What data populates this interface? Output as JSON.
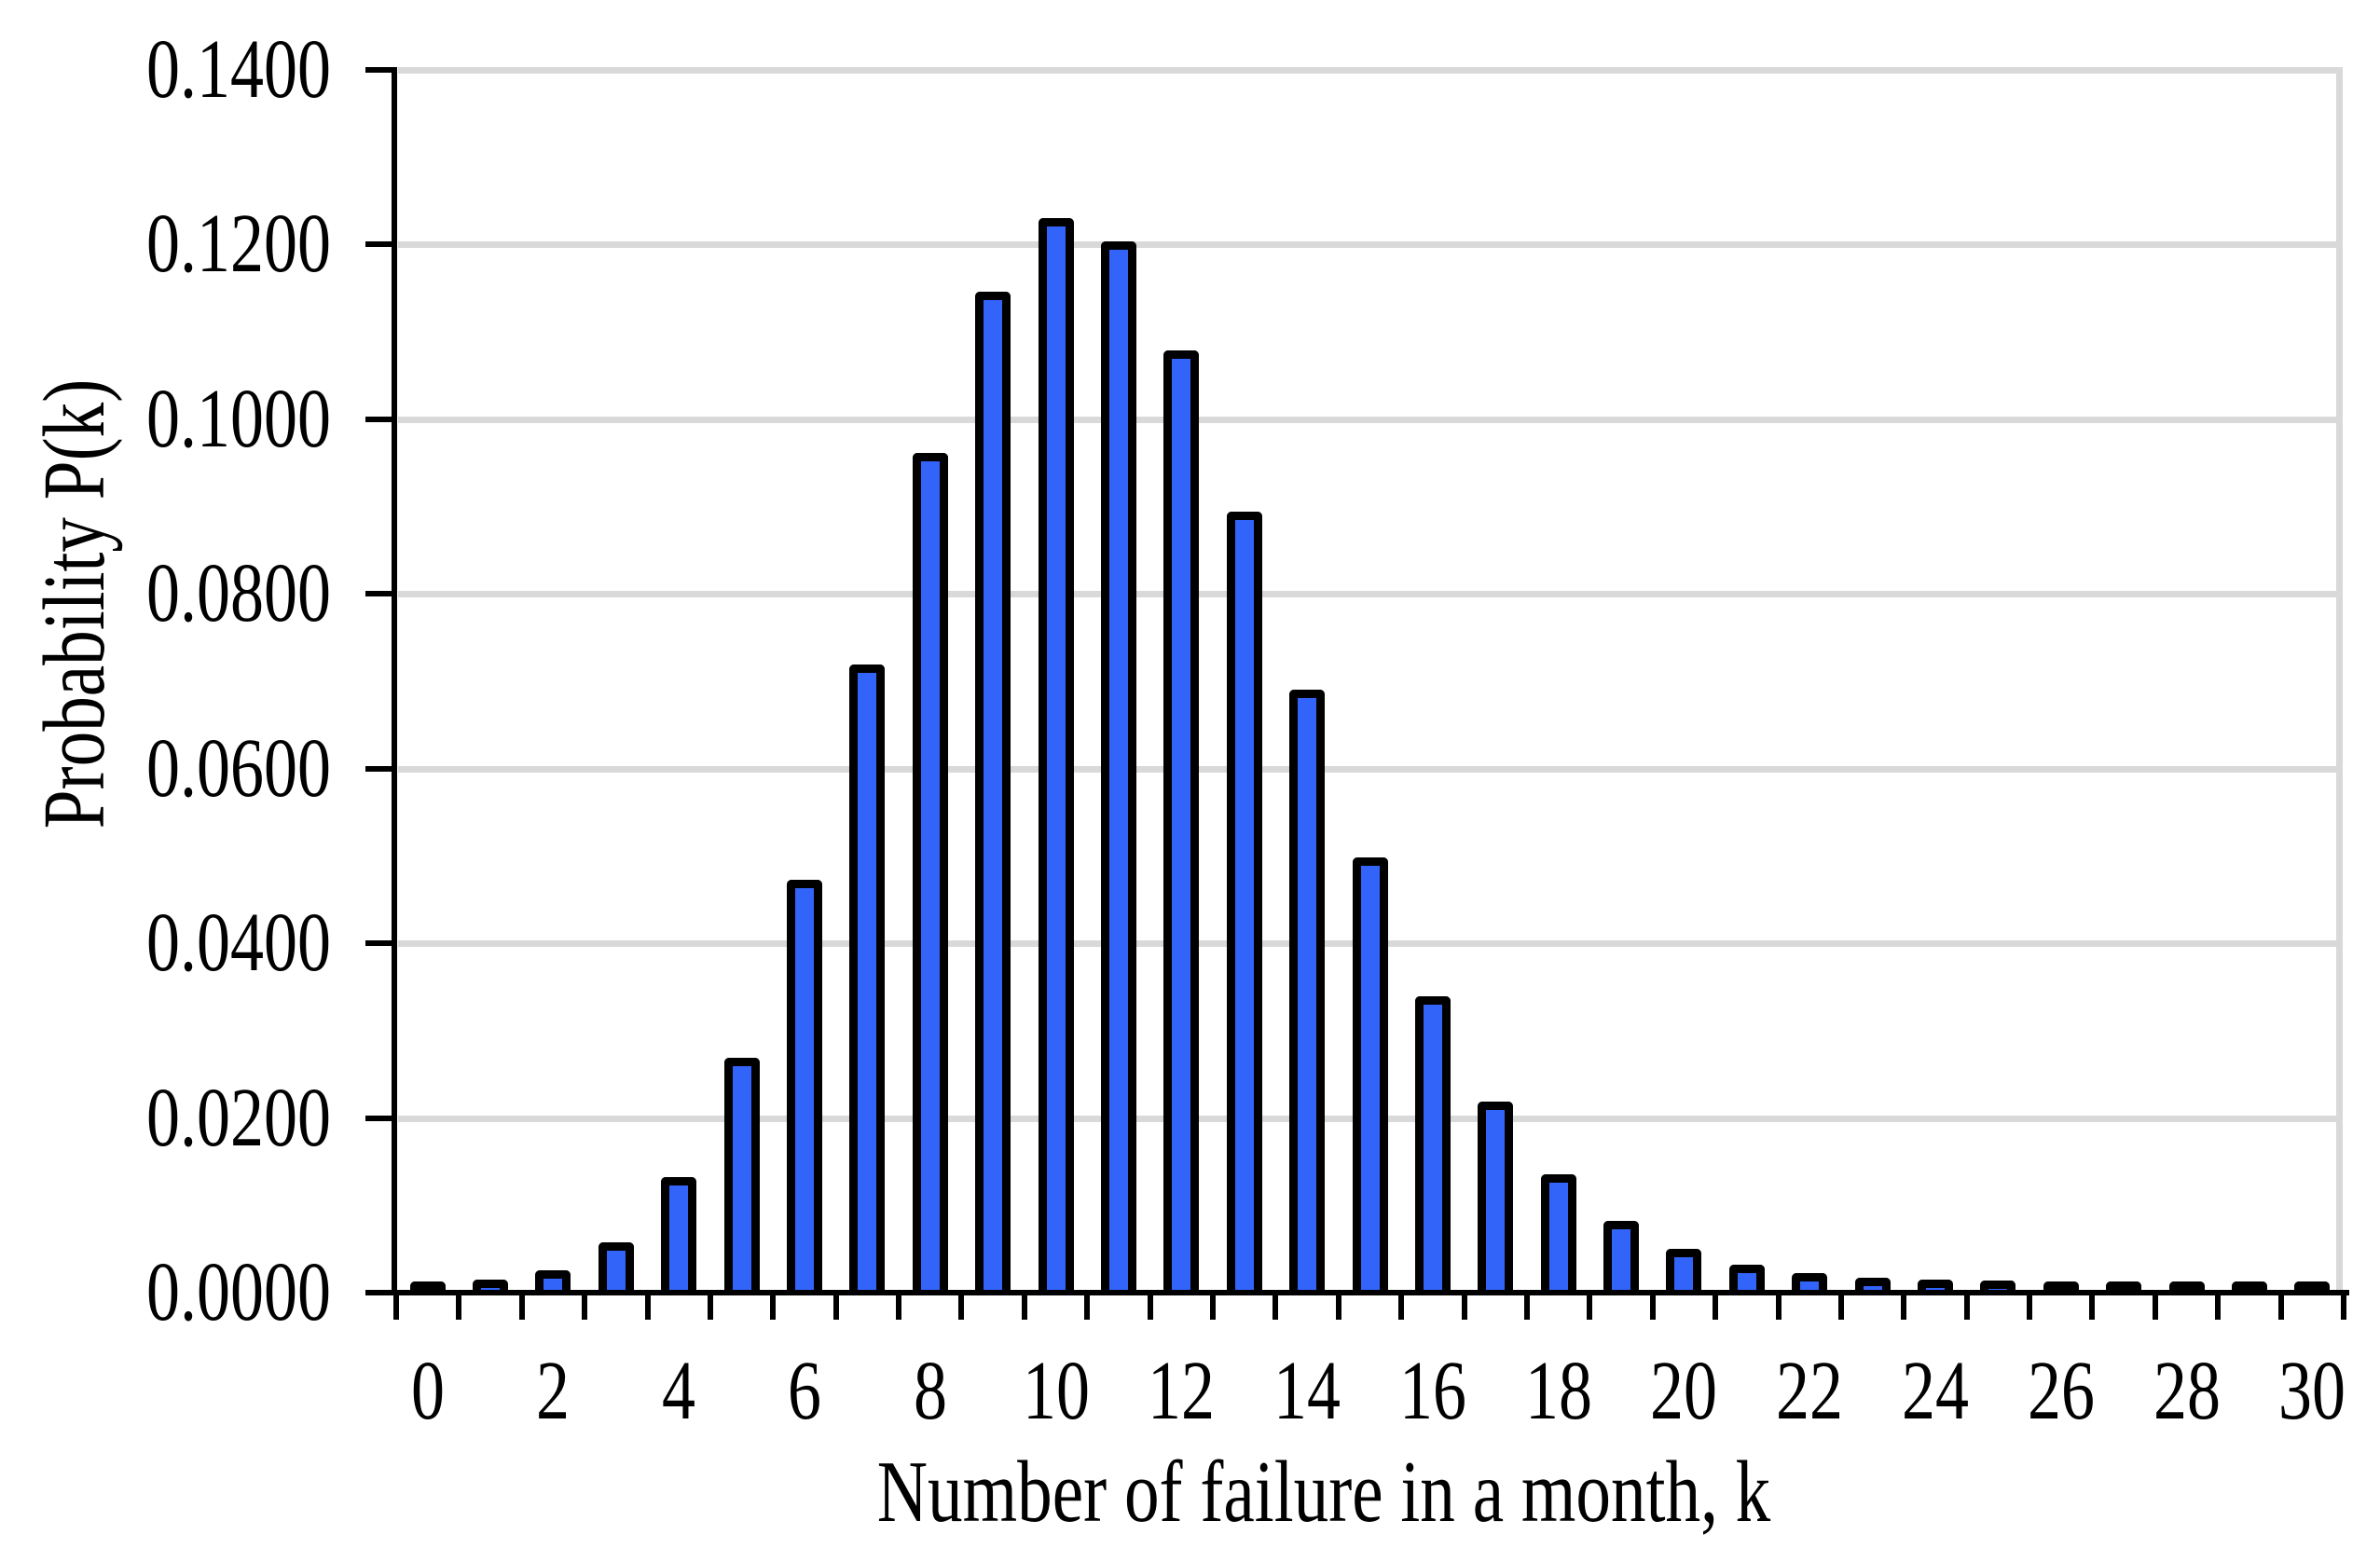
{
  "chart_data": {
    "type": "bar",
    "title": "",
    "xlabel": "Number of failure in a month, k",
    "ylabel": "Probability P(k)",
    "x": [
      0,
      1,
      2,
      3,
      4,
      5,
      6,
      7,
      8,
      9,
      10,
      11,
      12,
      13,
      14,
      15,
      16,
      17,
      18,
      19,
      20,
      21,
      22,
      23,
      24,
      25,
      26,
      27,
      28,
      29,
      30
    ],
    "values": [
      2.14e-05,
      0.0002305,
      0.0012392,
      0.0044403,
      0.0119333,
      0.0256565,
      0.0459679,
      0.0705935,
      0.09486,
      0.113305,
      0.1218029,
      0.1190346,
      0.1066351,
      0.0881794,
      0.0677092,
      0.048525,
      0.0326027,
      0.0206164,
      0.0123126,
      0.0069666,
      0.0037446,
      0.0019169,
      0.0009367,
      0.0004378,
      0.0001961,
      8.43e-05,
      3.49e-05,
      1.39e-05,
      5.3e-06,
      2e-06,
      7e-07
    ],
    "x_tick_labels": [
      "0",
      "2",
      "4",
      "6",
      "8",
      "10",
      "12",
      "14",
      "16",
      "18",
      "20",
      "22",
      "24",
      "26",
      "28",
      "30"
    ],
    "x_tick_step_labeled": 2,
    "y_tick_labels": [
      "0.0000",
      "0.0200",
      "0.0400",
      "0.0600",
      "0.0800",
      "0.1000",
      "0.1200",
      "0.1400"
    ],
    "ylim": [
      0,
      0.14
    ],
    "y_tick_step": 0.02,
    "gridlines": "horizontal",
    "legend": "none",
    "colors": {
      "bar_fill": "#3364FA",
      "bar_outline": "#000000",
      "gridline": "#D9D9D9",
      "axis": "#000000",
      "text": "#000000",
      "plot_border_right": "#D9D9D9",
      "background": "#FFFFFF"
    }
  }
}
